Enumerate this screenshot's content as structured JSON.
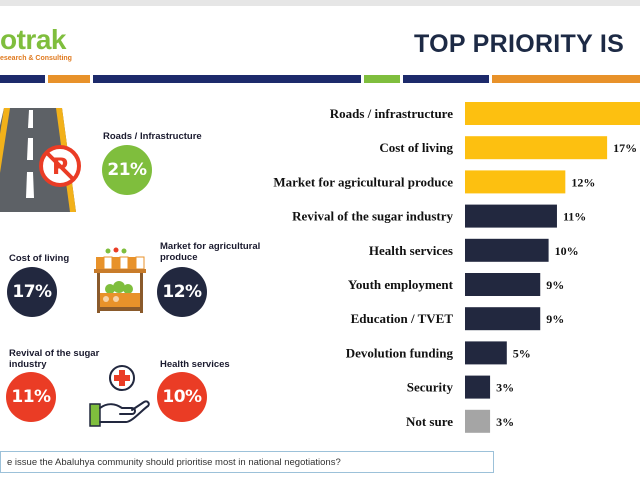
{
  "logo": {
    "main": "otrak",
    "sub": "esearch & Consulting"
  },
  "title": "TOP PRIORITY IS",
  "highlights": [
    {
      "label": "Roads / Infrastructure",
      "value": "21%"
    },
    {
      "label": "Cost of living",
      "value": "17%"
    },
    {
      "label": "Market for agricultural produce",
      "value": "12%"
    },
    {
      "label": "Revival of the sugar industry",
      "value": "11%"
    },
    {
      "label": "Health services",
      "value": "10%"
    }
  ],
  "question": "e issue the Abaluhya community should prioritise most in national negotiations?",
  "chart_data": {
    "type": "bar",
    "orientation": "horizontal",
    "categories": [
      "Roads / infrastructure",
      "Cost of living",
      "Market for agricultural produce",
      "Revival of the sugar industry",
      "Health services",
      "Youth employment",
      "Education / TVET",
      "Devolution funding",
      "Security",
      "Not sure"
    ],
    "values": [
      21,
      17,
      12,
      11,
      10,
      9,
      9,
      5,
      3,
      3
    ],
    "value_labels": [
      "",
      "17%",
      "12%",
      "11%",
      "10%",
      "9%",
      "9%",
      "5%",
      "3%",
      "3%"
    ],
    "colors": [
      "#fdc010",
      "#fdc010",
      "#fdc010",
      "#22283f",
      "#22283f",
      "#22283f",
      "#22283f",
      "#22283f",
      "#22283f",
      "#a5a5a5"
    ],
    "xlim": [
      0,
      21
    ]
  },
  "colors": {
    "green": "#7fbe3d",
    "navy": "#22283f",
    "red": "#ea3c25",
    "gold": "#fdc010",
    "grey": "#a5a5a5",
    "orange": "#e07a1f"
  }
}
